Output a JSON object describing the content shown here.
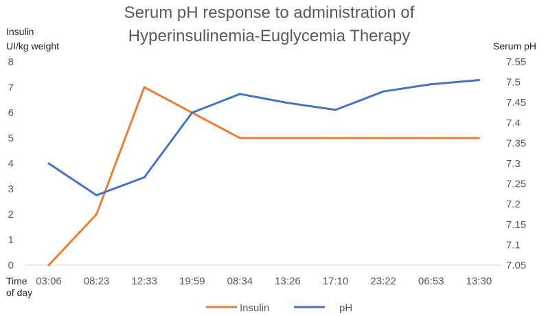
{
  "chart_data": {
    "type": "line",
    "title_line1": "Serum pH response to administration of",
    "title_line2": "Hyperinsulinemia-Euglycemia Therapy",
    "y_left_label_line1": "Insulin",
    "y_left_label_line2": "UI/kg weight",
    "y_right_label": "Serum pH",
    "x_label_line1": "Time",
    "x_label_line2": "of day",
    "categories": [
      "03:06",
      "08:23",
      "12:33",
      "19:59",
      "08:34",
      "13:26",
      "17:10",
      "23:22",
      "06:53",
      "13:30"
    ],
    "y_left_lim": [
      0,
      8
    ],
    "y_left_ticks": [
      "0",
      "1",
      "2",
      "3",
      "4",
      "5",
      "6",
      "7",
      "8"
    ],
    "y_right_lim": [
      7.05,
      7.55
    ],
    "y_right_ticks": [
      "7.05",
      "7.1",
      "7.15",
      "7.2",
      "7.25",
      "7.3",
      "7.35",
      "7.4",
      "7.45",
      "7.5",
      "7.55"
    ],
    "series": [
      {
        "name": "Insulin",
        "axis": "left",
        "color": "#ED7D31",
        "values": [
          0,
          2,
          7,
          6,
          5,
          5,
          5,
          5,
          5,
          5
        ]
      },
      {
        "name": "pH",
        "axis": "right",
        "color": "#4472C4",
        "values": [
          7.3,
          7.222,
          7.266,
          7.425,
          7.471,
          7.449,
          7.432,
          7.477,
          7.495,
          7.505
        ]
      }
    ],
    "grid": false,
    "legend_position": "bottom"
  }
}
